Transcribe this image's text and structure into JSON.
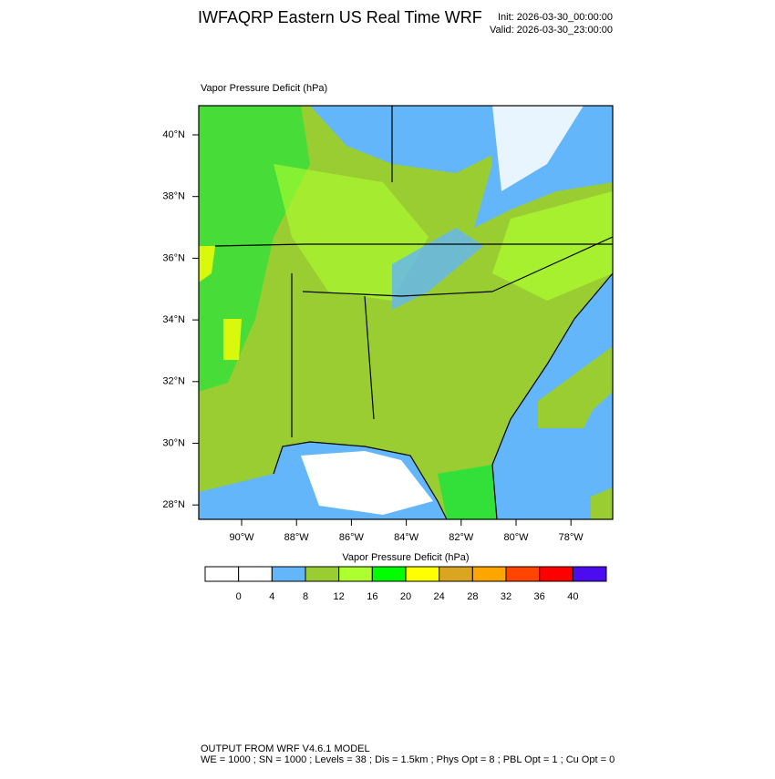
{
  "header": {
    "title": "IWFAQRP Eastern US Real Time WRF",
    "init": "Init: 2026-03-30_00:00:00",
    "valid": "Valid: 2026-03-30_23:00:00"
  },
  "map": {
    "title": "Vapor Pressure Deficit   (hPa)",
    "lat_labels": [
      "40°N",
      "38°N",
      "36°N",
      "34°N",
      "32°N",
      "30°N",
      "28°N"
    ],
    "lon_labels": [
      "90°W",
      "88°W",
      "86°W",
      "84°W",
      "82°W",
      "80°W",
      "78°W"
    ]
  },
  "colorbar": {
    "title": "Vapor Pressure Deficit  (hPa)",
    "colors": [
      "#ffffff",
      "#ffffff",
      "#63b6f9",
      "#9acd32",
      "#adff2f",
      "#00ff00",
      "#ffff00",
      "#daa520",
      "#ffa500",
      "#ff4500",
      "#ff0000",
      "#4b0cf0"
    ],
    "ticks": [
      0,
      4,
      8,
      12,
      16,
      20,
      24,
      28,
      32,
      36,
      40
    ]
  },
  "footer": {
    "line1": "OUTPUT FROM WRF V4.6.1 MODEL",
    "line2": "WE = 1000 ; SN = 1000 ; Levels = 38 ; Dis = 1.5km ; Phys Opt = 8 ; PBL Opt = 1 ; Cu Opt = 0"
  }
}
